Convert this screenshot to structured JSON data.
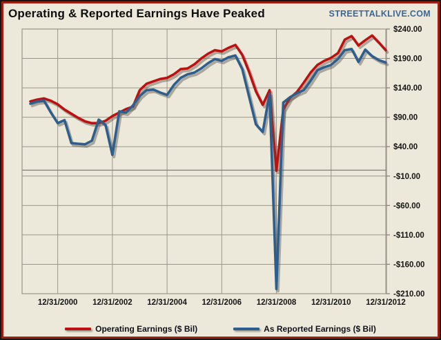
{
  "header": {
    "title": "Operating & Reported Earnings Have Peaked",
    "site": "STREETTALKLIVE.COM"
  },
  "colors": {
    "background": "#EDE9DA",
    "outer_border": "#161616",
    "inner_border": "#A01D12",
    "grid": "#9A9589",
    "zero_line": "#807C72",
    "axis_text": "#141414",
    "brand_blue": "#3A6698",
    "operating_red": "#BB1111",
    "reported_blue": "#2E5E8E",
    "line_shadow": "#5A574E"
  },
  "chart_data": {
    "type": "line",
    "title": "Operating & Reported Earnings Have Peaked",
    "xlabel": "",
    "ylabel": "",
    "ylim": [
      -210,
      240
    ],
    "grid": true,
    "legend_position": "bottom",
    "y_ticks": [
      240,
      190,
      140,
      90,
      40,
      -10,
      -60,
      -110,
      -160,
      -210
    ],
    "y_tick_labels": [
      "$240.00",
      "$190.00",
      "$140.00",
      "$90.00",
      "$40.00",
      "-$10.00",
      "-$60.00",
      "-$110.00",
      "-$160.00",
      "-$210.00"
    ],
    "x_tick_indices": [
      4,
      12,
      20,
      28,
      36,
      44,
      52
    ],
    "x_tick_labels": [
      "12/31/2000",
      "12/31/2002",
      "12/31/2004",
      "12/31/2006",
      "12/31/2008",
      "12/31/2010",
      "12/31/2012"
    ],
    "x_dates": [
      "12/31/1999",
      "3/31/2000",
      "6/30/2000",
      "9/30/2000",
      "12/31/2000",
      "3/31/2001",
      "6/30/2001",
      "9/30/2001",
      "12/31/2001",
      "3/31/2002",
      "6/30/2002",
      "9/30/2002",
      "12/31/2002",
      "3/31/2003",
      "6/30/2003",
      "9/30/2003",
      "12/31/2003",
      "3/31/2004",
      "6/30/2004",
      "9/30/2004",
      "12/31/2004",
      "3/31/2005",
      "6/30/2005",
      "9/30/2005",
      "12/31/2005",
      "3/31/2006",
      "6/30/2006",
      "9/30/2006",
      "12/31/2006",
      "3/31/2007",
      "6/30/2007",
      "9/30/2007",
      "12/31/2007",
      "3/31/2008",
      "6/30/2008",
      "9/30/2008",
      "12/31/2008",
      "3/31/2009",
      "6/30/2009",
      "9/30/2009",
      "12/31/2009",
      "3/31/2010",
      "6/30/2010",
      "9/30/2010",
      "12/31/2010",
      "3/31/2011",
      "6/30/2011",
      "9/30/2011",
      "12/31/2011",
      "3/31/2012",
      "6/30/2012",
      "9/30/2012",
      "12/31/2012"
    ],
    "series": [
      {
        "name": "Operating Earnings ($ Bil)",
        "color": "#BB1111",
        "values": [
          117,
          120,
          122,
          118,
          112,
          103,
          96,
          89,
          83,
          80,
          80,
          84,
          92,
          98,
          104,
          108,
          136,
          147,
          151,
          155,
          157,
          163,
          172,
          173,
          180,
          190,
          198,
          204,
          202,
          208,
          213,
          196,
          167,
          134,
          111,
          136,
          -1,
          103,
          123,
          133,
          149,
          166,
          179,
          186,
          191,
          199,
          222,
          228,
          212,
          221,
          229,
          217,
          204
        ]
      },
      {
        "name": "As Reported Earnings ($ Bil)",
        "color": "#2E5E8E",
        "values": [
          113,
          117,
          118,
          98,
          80,
          85,
          46,
          45,
          44,
          50,
          86,
          77,
          26,
          100,
          98,
          110,
          126,
          136,
          137,
          132,
          128,
          145,
          157,
          163,
          166,
          173,
          182,
          189,
          186,
          192,
          195,
          172,
          125,
          78,
          65,
          130,
          -202,
          115,
          124,
          131,
          136,
          152,
          170,
          175,
          179,
          189,
          204,
          206,
          184,
          205,
          194,
          187,
          183
        ]
      }
    ]
  },
  "legend": {
    "items": [
      {
        "label": "Operating Earnings ($ Bil)"
      },
      {
        "label": "As Reported Earnings ($ Bil)"
      }
    ]
  }
}
